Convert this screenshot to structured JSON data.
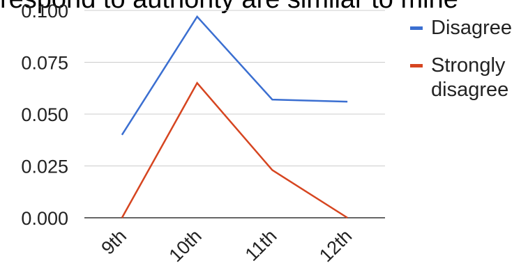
{
  "chart_data": {
    "type": "line",
    "title": "respond to authority are similar to mine",
    "xlabel": "",
    "ylabel": "",
    "categories": [
      "9th",
      "10th",
      "11th",
      "12th"
    ],
    "ylim": [
      0,
      0.1
    ],
    "yticks": [
      "0.000",
      "0.025",
      "0.050",
      "0.075",
      "0.100"
    ],
    "grid": true,
    "legend_position": "right",
    "series": [
      {
        "name": "Disagree",
        "values": [
          0.04,
          0.097,
          0.057,
          0.056
        ],
        "color": "#3b6fd1"
      },
      {
        "name": "Strongly disagree",
        "values": [
          0.0,
          0.065,
          0.023,
          0.0
        ],
        "color": "#d64520"
      }
    ],
    "legend": {
      "items": [
        {
          "lines": [
            "Disagree"
          ],
          "color": "#3b6fd1"
        },
        {
          "lines": [
            "Strongly",
            "disagree"
          ],
          "color": "#d64520"
        }
      ]
    }
  }
}
